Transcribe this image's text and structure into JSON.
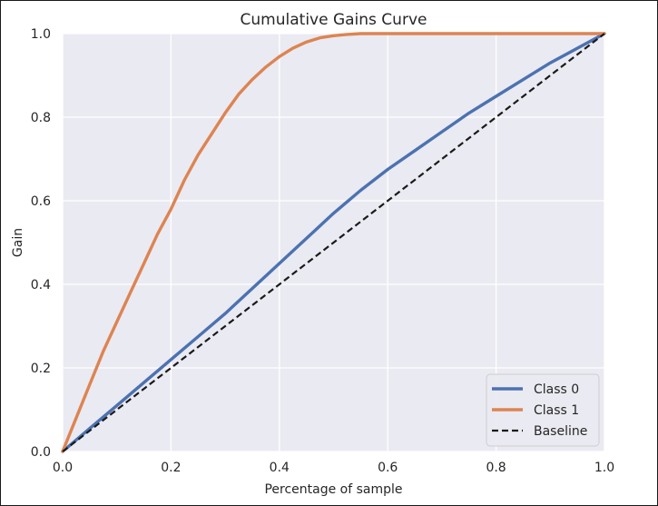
{
  "chart_data": {
    "type": "line",
    "title": "Cumulative Gains Curve",
    "xlabel": "Percentage of sample",
    "ylabel": "Gain",
    "xlim": [
      0.0,
      1.0
    ],
    "ylim": [
      0.0,
      1.0
    ],
    "xticks": [
      "0.0",
      "0.2",
      "0.4",
      "0.6",
      "0.8",
      "1.0"
    ],
    "yticks": [
      "0.0",
      "0.2",
      "0.4",
      "0.6",
      "0.8",
      "1.0"
    ],
    "grid": true,
    "legend_position": "lower-right",
    "background_color": "#eaeaf2",
    "series": [
      {
        "name": "Class 0",
        "color": "#4c72b0",
        "dash": "solid",
        "x": [
          0.0,
          0.05,
          0.1,
          0.15,
          0.2,
          0.25,
          0.3,
          0.35,
          0.4,
          0.45,
          0.5,
          0.55,
          0.6,
          0.65,
          0.7,
          0.75,
          0.8,
          0.85,
          0.9,
          0.95,
          1.0
        ],
        "y": [
          0.0,
          0.055,
          0.11,
          0.165,
          0.22,
          0.275,
          0.33,
          0.39,
          0.45,
          0.51,
          0.57,
          0.625,
          0.675,
          0.72,
          0.765,
          0.81,
          0.85,
          0.89,
          0.93,
          0.965,
          1.0
        ]
      },
      {
        "name": "Class 1",
        "color": "#dd8452",
        "dash": "solid",
        "x": [
          0.0,
          0.025,
          0.05,
          0.075,
          0.1,
          0.125,
          0.15,
          0.175,
          0.2,
          0.225,
          0.25,
          0.275,
          0.3,
          0.325,
          0.35,
          0.375,
          0.4,
          0.425,
          0.45,
          0.475,
          0.5,
          0.525,
          0.55,
          0.6,
          0.7,
          0.8,
          0.9,
          1.0
        ],
        "y": [
          0.0,
          0.08,
          0.16,
          0.24,
          0.31,
          0.38,
          0.45,
          0.52,
          0.58,
          0.65,
          0.71,
          0.76,
          0.81,
          0.855,
          0.89,
          0.92,
          0.945,
          0.965,
          0.98,
          0.99,
          0.995,
          0.998,
          1.0,
          1.0,
          1.0,
          1.0,
          1.0,
          1.0
        ]
      },
      {
        "name": "Baseline",
        "color": "#1a1a1a",
        "dash": "dashed",
        "x": [
          0.0,
          1.0
        ],
        "y": [
          0.0,
          1.0
        ]
      }
    ]
  }
}
